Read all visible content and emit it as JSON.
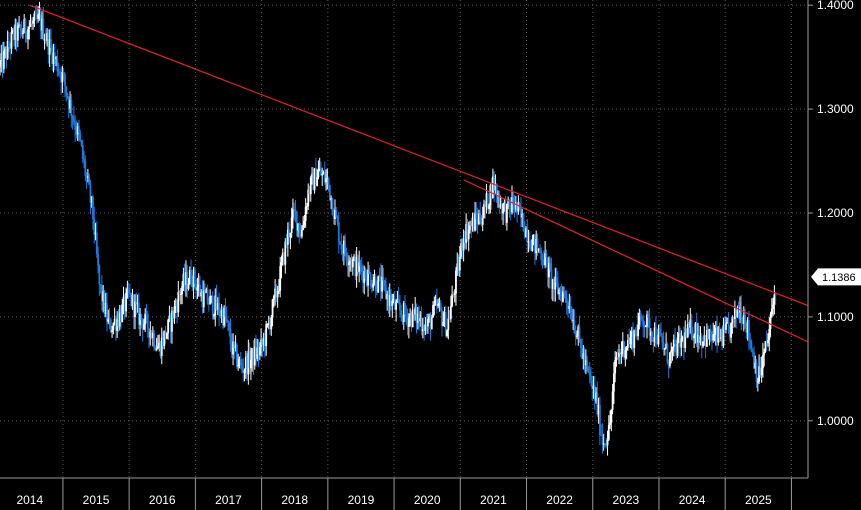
{
  "chart_data": {
    "type": "line",
    "title": "",
    "xlabel": "",
    "ylabel": "",
    "x_ticks": [
      "2014",
      "2015",
      "2016",
      "2017",
      "2018",
      "2019",
      "2020",
      "2021",
      "2022",
      "2023",
      "2024",
      "2025"
    ],
    "y_ticks": [
      "1.4000",
      "1.3000",
      "1.2000",
      "1.1000",
      "1.0000"
    ],
    "xlim": [
      2013.55,
      2025.75
    ],
    "ylim": [
      0.945,
      1.405
    ],
    "grid": true,
    "last_value_label": "1.1386",
    "colors": {
      "background": "#000000",
      "candle_up": "#ffffff",
      "candle_down": "#1f7ae0",
      "trendline": "#e0242b",
      "grid": "#5a5a5a",
      "axis": "#9a9a9a",
      "last_label_bg": "#ffffff"
    },
    "series": [
      {
        "values_x": [
          2013.55,
          2013.75,
          2014.0,
          2014.15,
          2014.3,
          2014.5,
          2014.75,
          2014.95,
          2015.05,
          2015.2,
          2015.35,
          2015.5,
          2015.65,
          2015.8,
          2015.95,
          2016.1,
          2016.3,
          2016.45,
          2016.6,
          2016.8,
          2016.95,
          2017.05,
          2017.2,
          2017.35,
          2017.5,
          2017.6,
          2017.75,
          2017.9,
          2018.0,
          2018.1,
          2018.2,
          2018.35,
          2018.5,
          2018.7,
          2018.9,
          2019.1,
          2019.3,
          2019.5,
          2019.7,
          2019.85,
          2020.0,
          2020.15,
          2020.3,
          2020.45,
          2020.55,
          2020.7,
          2020.85,
          2021.0,
          2021.1,
          2021.2,
          2021.3,
          2021.45,
          2021.6,
          2021.75,
          2021.9,
          2022.1,
          2022.2,
          2022.4,
          2022.55,
          2022.65,
          2022.75,
          2022.85,
          2022.95,
          2023.1,
          2023.25,
          2023.35,
          2023.5,
          2023.65,
          2023.75,
          2023.9,
          2024.0,
          2024.15,
          2024.3,
          2024.45,
          2024.6,
          2024.7,
          2024.8,
          2024.9,
          2025.0,
          2025.15,
          2025.28
        ],
        "values_y": [
          1.34,
          1.37,
          1.38,
          1.385,
          1.36,
          1.33,
          1.27,
          1.2,
          1.13,
          1.09,
          1.1,
          1.12,
          1.1,
          1.09,
          1.07,
          1.09,
          1.13,
          1.14,
          1.12,
          1.11,
          1.1,
          1.07,
          1.05,
          1.06,
          1.07,
          1.09,
          1.13,
          1.18,
          1.2,
          1.18,
          1.22,
          1.24,
          1.23,
          1.17,
          1.15,
          1.14,
          1.13,
          1.11,
          1.1,
          1.1,
          1.09,
          1.11,
          1.09,
          1.14,
          1.18,
          1.19,
          1.2,
          1.23,
          1.21,
          1.2,
          1.21,
          1.19,
          1.17,
          1.16,
          1.13,
          1.12,
          1.1,
          1.05,
          1.02,
          0.98,
          0.99,
          1.06,
          1.07,
          1.08,
          1.1,
          1.09,
          1.08,
          1.06,
          1.07,
          1.08,
          1.09,
          1.08,
          1.08,
          1.08,
          1.09,
          1.11,
          1.1,
          1.07,
          1.04,
          1.08,
          1.1386
        ]
      }
    ],
    "trendlines": [
      {
        "name": "",
        "x": [
          2014.0,
          2025.75
        ],
        "y": [
          1.4,
          1.111
        ]
      },
      {
        "name": "",
        "x": [
          2020.55,
          2025.75
        ],
        "y": [
          1.232,
          1.076
        ]
      }
    ]
  }
}
